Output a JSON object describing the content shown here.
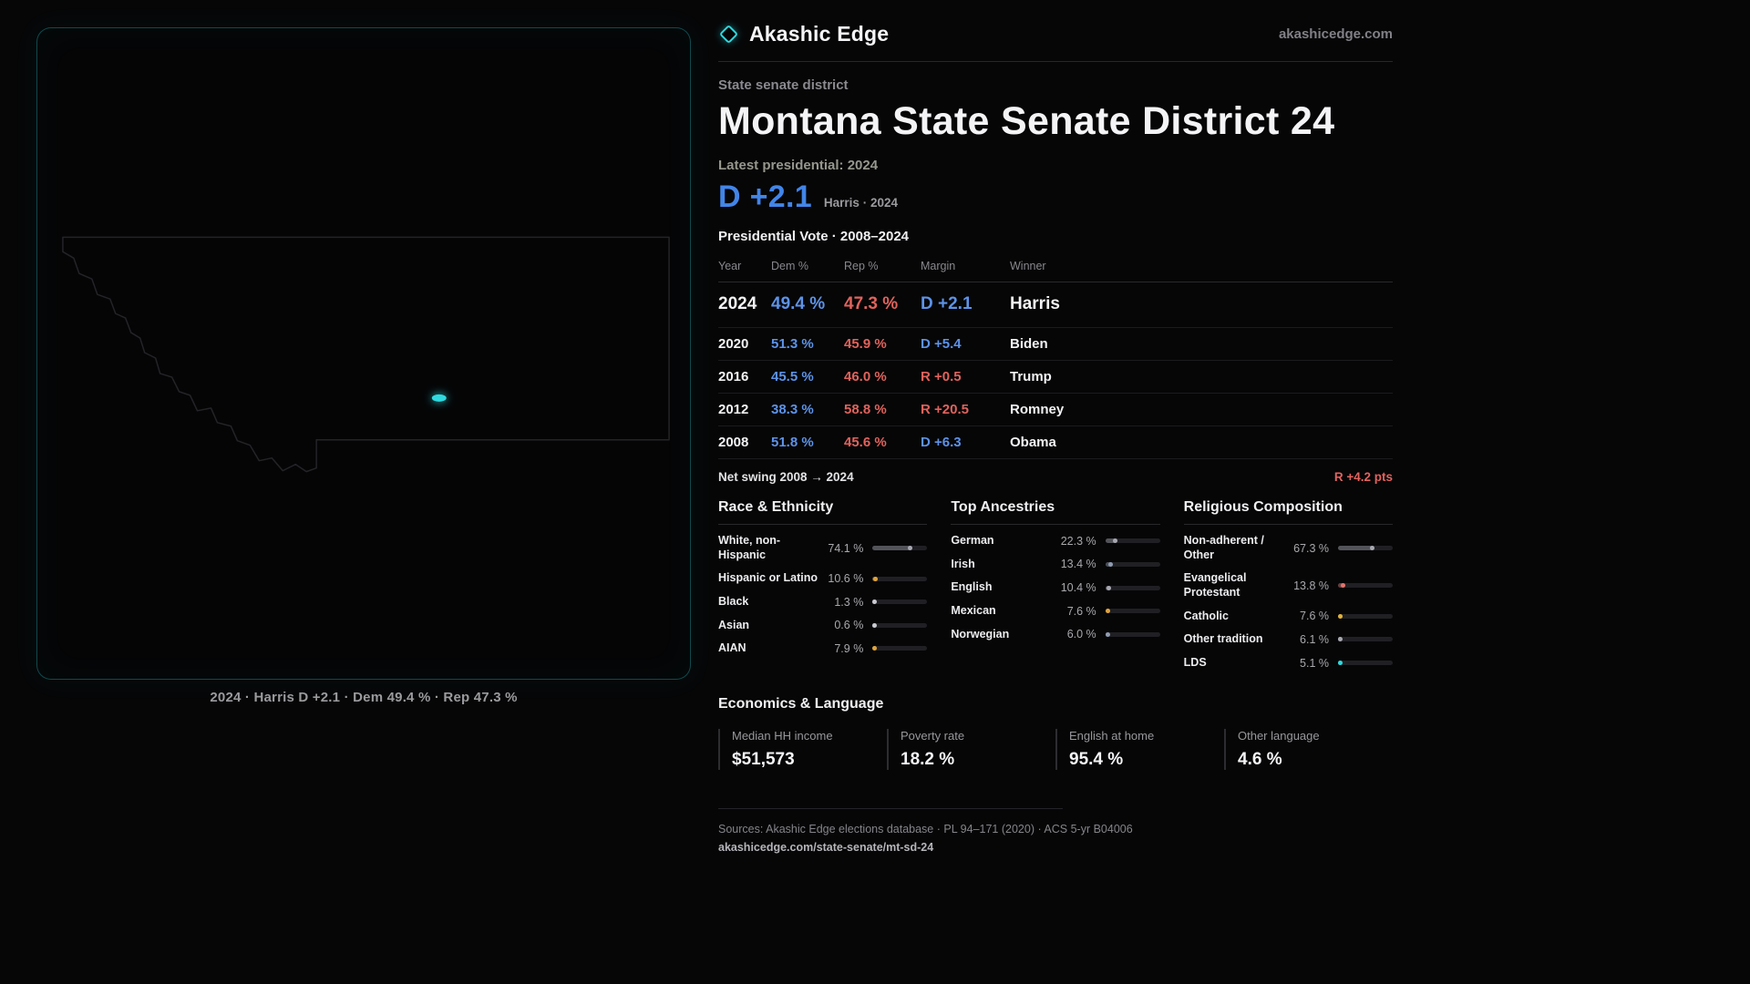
{
  "theme": {
    "accent_teal": "#2fd9df",
    "dem_blue": "#5d93e8",
    "rep_red": "#e0635c"
  },
  "brand": {
    "name": "Akashic Edge",
    "site": "akashicedge.com"
  },
  "map_panel": {
    "caption": "2024 · Harris D +2.1 · Dem 49.4 % · Rep 47.3 %"
  },
  "page": {
    "kicker": "State senate district",
    "title": "Montana State Senate District 24",
    "latest_label": "Latest presidential: 2024",
    "headline": {
      "margin": "D +2.1",
      "note": "Harris · 2024"
    }
  },
  "vote_table": {
    "title": "Presidential Vote · 2008–2024",
    "columns": [
      "Year",
      "Dem %",
      "Rep %",
      "Margin",
      "Winner"
    ],
    "rows": [
      {
        "year": "2024",
        "dem": "49.4 %",
        "rep": "47.3 %",
        "margin": "D +2.1",
        "winner": "Harris",
        "lean": "D",
        "featured": true
      },
      {
        "year": "2020",
        "dem": "51.3 %",
        "rep": "45.9 %",
        "margin": "D +5.4",
        "winner": "Biden",
        "lean": "D",
        "featured": false
      },
      {
        "year": "2016",
        "dem": "45.5 %",
        "rep": "46.0 %",
        "margin": "R +0.5",
        "winner": "Trump",
        "lean": "R",
        "featured": false
      },
      {
        "year": "2012",
        "dem": "38.3 %",
        "rep": "58.8 %",
        "margin": "R +20.5",
        "winner": "Romney",
        "lean": "R",
        "featured": false
      },
      {
        "year": "2008",
        "dem": "51.8 %",
        "rep": "45.6 %",
        "margin": "D +6.3",
        "winner": "Obama",
        "lean": "D",
        "featured": false
      }
    ],
    "net_swing_label": "Net swing 2008 → 2024",
    "net_swing_value": "R +4.2 pts"
  },
  "demographics": {
    "race": {
      "title": "Race & Ethnicity",
      "items": [
        {
          "label": "White, non-Hispanic",
          "value": "74.1 %",
          "pct": 74.1,
          "color": "#a8a8b2"
        },
        {
          "label": "Hispanic or Latino",
          "value": "10.6 %",
          "pct": 10.6,
          "color": "#e0a43c"
        },
        {
          "label": "Black",
          "value": "1.3 %",
          "pct": 1.3,
          "color": "#c9c9d2"
        },
        {
          "label": "Asian",
          "value": "0.6 %",
          "pct": 0.6,
          "color": "#c9c9d2"
        },
        {
          "label": "AIAN",
          "value": "7.9 %",
          "pct": 7.9,
          "color": "#e0a43c"
        }
      ]
    },
    "ancestries": {
      "title": "Top Ancestries",
      "items": [
        {
          "label": "German",
          "value": "22.3 %",
          "pct": 22.3,
          "color": "#a8a8b2"
        },
        {
          "label": "Irish",
          "value": "13.4 %",
          "pct": 13.4,
          "color": "#8f9bb0"
        },
        {
          "label": "English",
          "value": "10.4 %",
          "pct": 10.4,
          "color": "#a8a8b2"
        },
        {
          "label": "Mexican",
          "value": "7.6 %",
          "pct": 7.6,
          "color": "#e0a43c"
        },
        {
          "label": "Norwegian",
          "value": "6.0 %",
          "pct": 6.0,
          "color": "#8f9bb0"
        }
      ]
    },
    "religion": {
      "title": "Religious Composition",
      "items": [
        {
          "label": "Non-adherent / Other",
          "value": "67.3 %",
          "pct": 67.3,
          "color": "#a8a8b2"
        },
        {
          "label": "Evangelical Protestant",
          "value": "13.8 %",
          "pct": 13.8,
          "color": "#e2736e"
        },
        {
          "label": "Catholic",
          "value": "7.6 %",
          "pct": 7.6,
          "color": "#e0b23c"
        },
        {
          "label": "Other tradition",
          "value": "6.1 %",
          "pct": 6.1,
          "color": "#a8a8b2"
        },
        {
          "label": "LDS",
          "value": "5.1 %",
          "pct": 5.1,
          "color": "#2fd9df"
        }
      ]
    }
  },
  "economics": {
    "title": "Economics & Language",
    "stats": [
      {
        "label": "Median HH income",
        "value": "$51,573"
      },
      {
        "label": "Poverty rate",
        "value": "18.2 %"
      },
      {
        "label": "English at home",
        "value": "95.4 %"
      },
      {
        "label": "Other language",
        "value": "4.6 %"
      }
    ]
  },
  "footer": {
    "sources": "Sources: Akashic Edge elections database · PL 94–171 (2020) · ACS 5-yr B04006",
    "permalink": "akashicedge.com/state-senate/mt-sd-24"
  }
}
